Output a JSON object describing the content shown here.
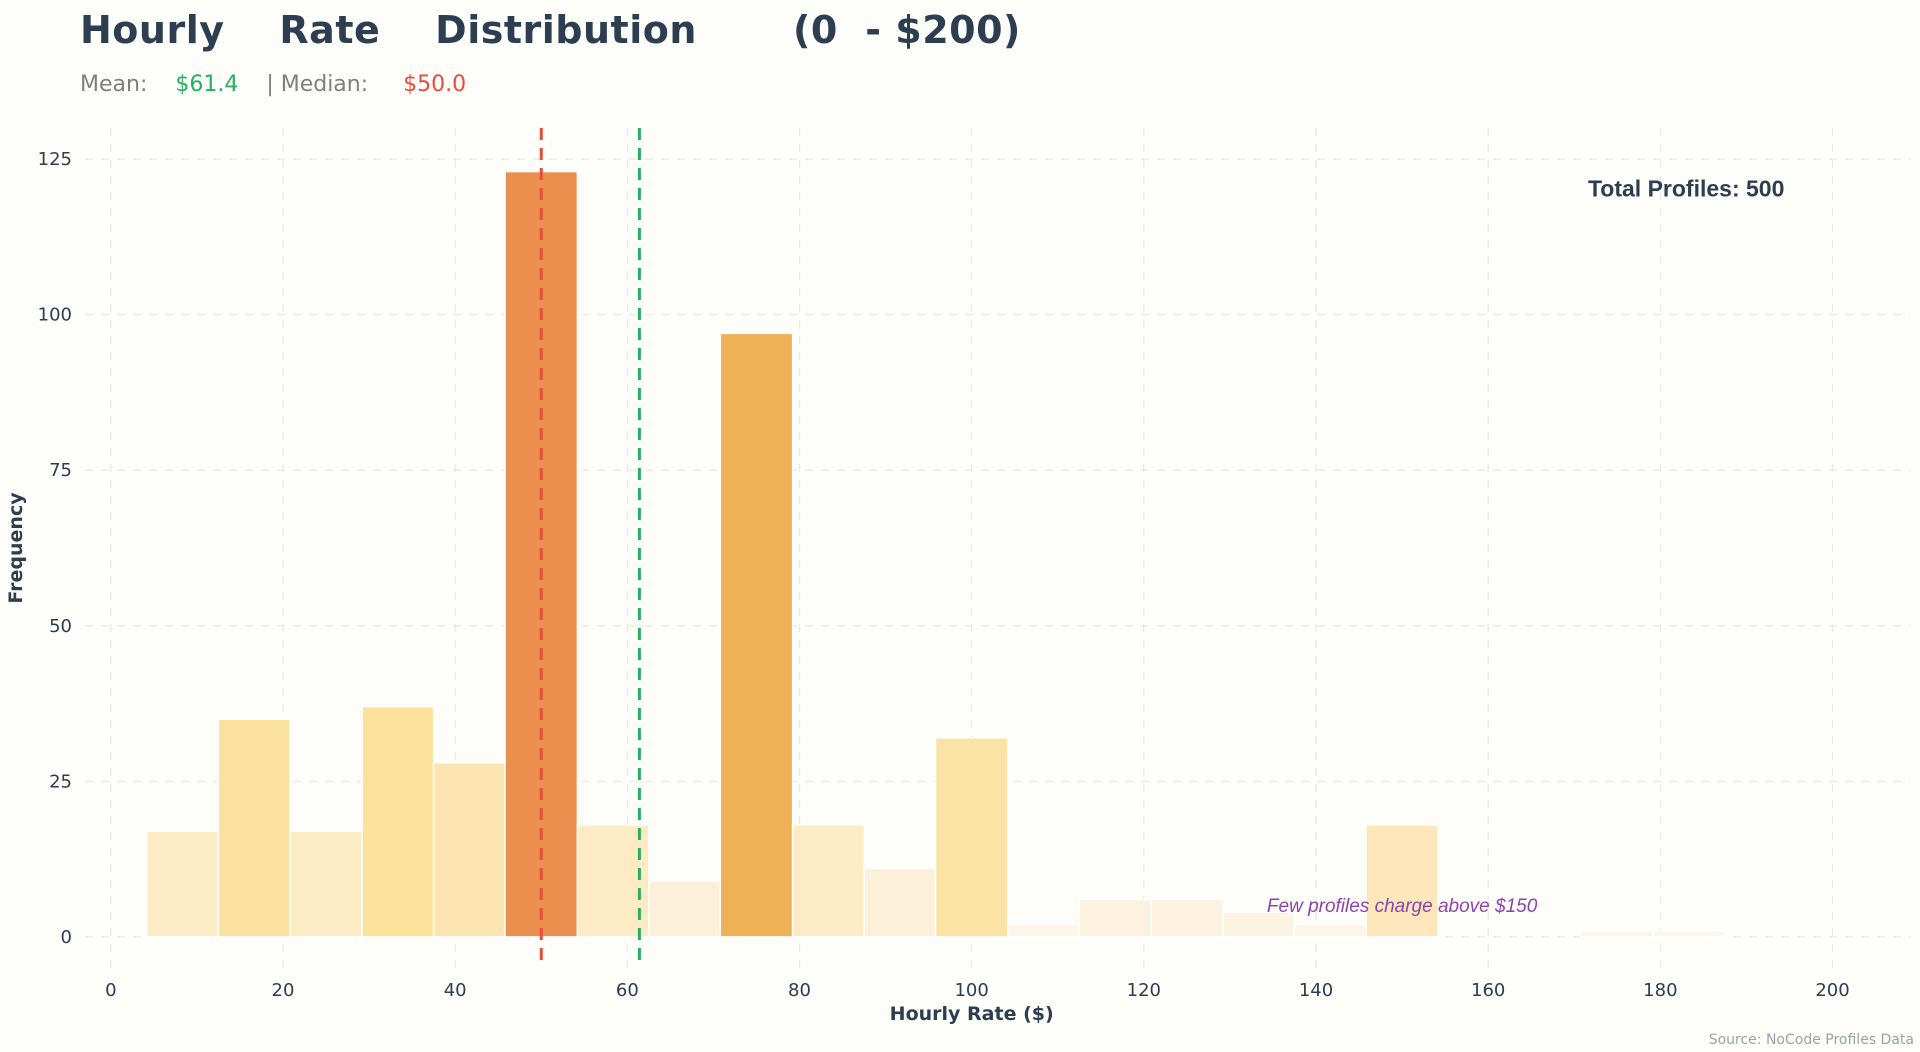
{
  "header": {
    "title": "Hourly    Rate    Distribution       (0  - $200)",
    "mean_label": "Mean:",
    "mean_value": "$61.4",
    "separator": "| Median:",
    "median_value": "$50.0"
  },
  "source": "Source: NoCode Profiles Data",
  "colors": {
    "mean_line": "#27ae60",
    "median_line": "#e74c3c",
    "annotation": "#8e44ad",
    "grid": "#e8e8e8",
    "text": "#2c3e50"
  },
  "chart_data": {
    "type": "bar",
    "title": "Hourly    Rate    Distribution       (0  - $200)",
    "xlabel": "Hourly Rate ($)",
    "ylabel": "Frequency",
    "xlim": [
      -3,
      209
    ],
    "ylim": [
      -5,
      130
    ],
    "xticks": [
      0,
      20,
      40,
      60,
      80,
      100,
      120,
      140,
      160,
      180,
      200
    ],
    "yticks": [
      0,
      25,
      50,
      75,
      100,
      125
    ],
    "grid": true,
    "bin_width": 8.33,
    "bins": [
      {
        "x0": 4.2,
        "x1": 12.5,
        "count": 17,
        "color": "#fdebc4"
      },
      {
        "x0": 12.5,
        "x1": 20.8,
        "count": 35,
        "color": "#fbe19e"
      },
      {
        "x0": 20.8,
        "x1": 29.2,
        "count": 17,
        "color": "#fdebc4"
      },
      {
        "x0": 29.2,
        "x1": 37.5,
        "count": 37,
        "color": "#fbe19a"
      },
      {
        "x0": 37.5,
        "x1": 45.8,
        "count": 28,
        "color": "#fce5b0"
      },
      {
        "x0": 45.8,
        "x1": 54.2,
        "count": 123,
        "color": "#ea8f4e"
      },
      {
        "x0": 54.2,
        "x1": 62.5,
        "count": 18,
        "color": "#fdebc4"
      },
      {
        "x0": 62.5,
        "x1": 70.8,
        "count": 9,
        "color": "#fdf0d8"
      },
      {
        "x0": 70.8,
        "x1": 79.2,
        "count": 97,
        "color": "#efb156"
      },
      {
        "x0": 79.2,
        "x1": 87.5,
        "count": 18,
        "color": "#fdebc4"
      },
      {
        "x0": 87.5,
        "x1": 95.8,
        "count": 11,
        "color": "#fdf0d8"
      },
      {
        "x0": 95.8,
        "x1": 104.2,
        "count": 32,
        "color": "#fbe3a6"
      },
      {
        "x0": 104.2,
        "x1": 112.5,
        "count": 2,
        "color": "#fdf5e8"
      },
      {
        "x0": 112.5,
        "x1": 120.8,
        "count": 6,
        "color": "#fdf2e0"
      },
      {
        "x0": 120.8,
        "x1": 129.2,
        "count": 6,
        "color": "#fdf2e0"
      },
      {
        "x0": 129.2,
        "x1": 137.5,
        "count": 4,
        "color": "#fdf3e3"
      },
      {
        "x0": 137.5,
        "x1": 145.8,
        "count": 2,
        "color": "#fdf5e8"
      },
      {
        "x0": 145.8,
        "x1": 154.2,
        "count": 18,
        "color": "#fde7bb"
      },
      {
        "x0": 170.8,
        "x1": 179.2,
        "count": 1,
        "color": "#fdf5ea"
      },
      {
        "x0": 179.2,
        "x1": 187.5,
        "count": 1,
        "color": "#fdf5ea"
      }
    ],
    "mean": 61.4,
    "median": 50.0,
    "annotations": [
      {
        "text": "Total Profiles: 500",
        "x": 183,
        "y": 119,
        "anchor": "middle",
        "style": "bold",
        "color": "#2c3e50"
      },
      {
        "text": "Few profiles charge above $150",
        "x": 150,
        "y": 4,
        "anchor": "middle",
        "style": "italic",
        "color": "#8e44ad"
      }
    ]
  }
}
